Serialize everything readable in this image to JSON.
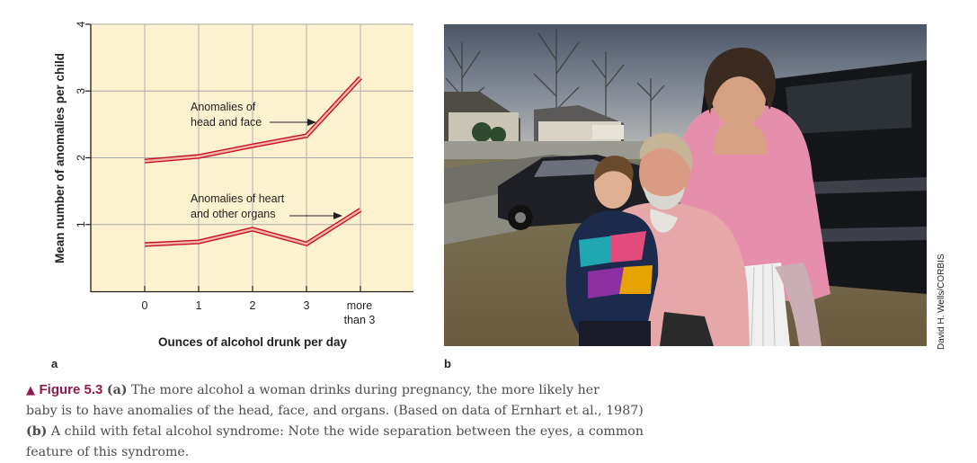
{
  "chart_data": {
    "type": "line",
    "title": "",
    "xlabel": "Ounces of alcohol drunk per day",
    "ylabel": "Mean number of anomalies per child",
    "categories": [
      "0",
      "1",
      "2",
      "3",
      "more than 3"
    ],
    "category_lines": [
      [
        "0"
      ],
      [
        "1"
      ],
      [
        "2"
      ],
      [
        "3"
      ],
      [
        "more",
        "than 3"
      ]
    ],
    "ylim": [
      0,
      4
    ],
    "yticks": [
      "1",
      "2",
      "3",
      "4"
    ],
    "grid": true,
    "series": [
      {
        "name": "Anomalies of head and face",
        "label_lines": [
          "Anomalies of",
          "head and face"
        ],
        "values": [
          1.95,
          2.02,
          2.18,
          2.33,
          3.2
        ]
      },
      {
        "name": "Anomalies of heart and other organs",
        "label_lines": [
          "Anomalies of heart",
          "and other organs"
        ],
        "values": [
          0.7,
          0.74,
          0.93,
          0.71,
          1.22
        ]
      }
    ],
    "colors": {
      "background": "#fdf2cf",
      "grid": "#9b9b9b",
      "line_fill": "#f3b9a0",
      "line_edge": "#c8102e"
    }
  },
  "panels": {
    "a_label": "a",
    "b_label": "b"
  },
  "photo": {
    "credit": "David H. Wells/CORBIS",
    "description_icon": "photo-of-family"
  },
  "caption": {
    "marker": "▲",
    "figure_label": "Figure 5.3",
    "part_a_label": "(a)",
    "line1_text": "The more alcohol a woman drinks during pregnancy, the more likely her",
    "line2_text": "baby is to have anomalies of the head, face, and organs. (Based on data of Ernhart et al., 1987)",
    "part_b_label": "(b)",
    "line3_text": "A child with fetal alcohol syndrome: Note the wide separation between the eyes, a common",
    "line4_text": "feature of this syndrome.",
    "accent_color": "#8e1a4f"
  }
}
